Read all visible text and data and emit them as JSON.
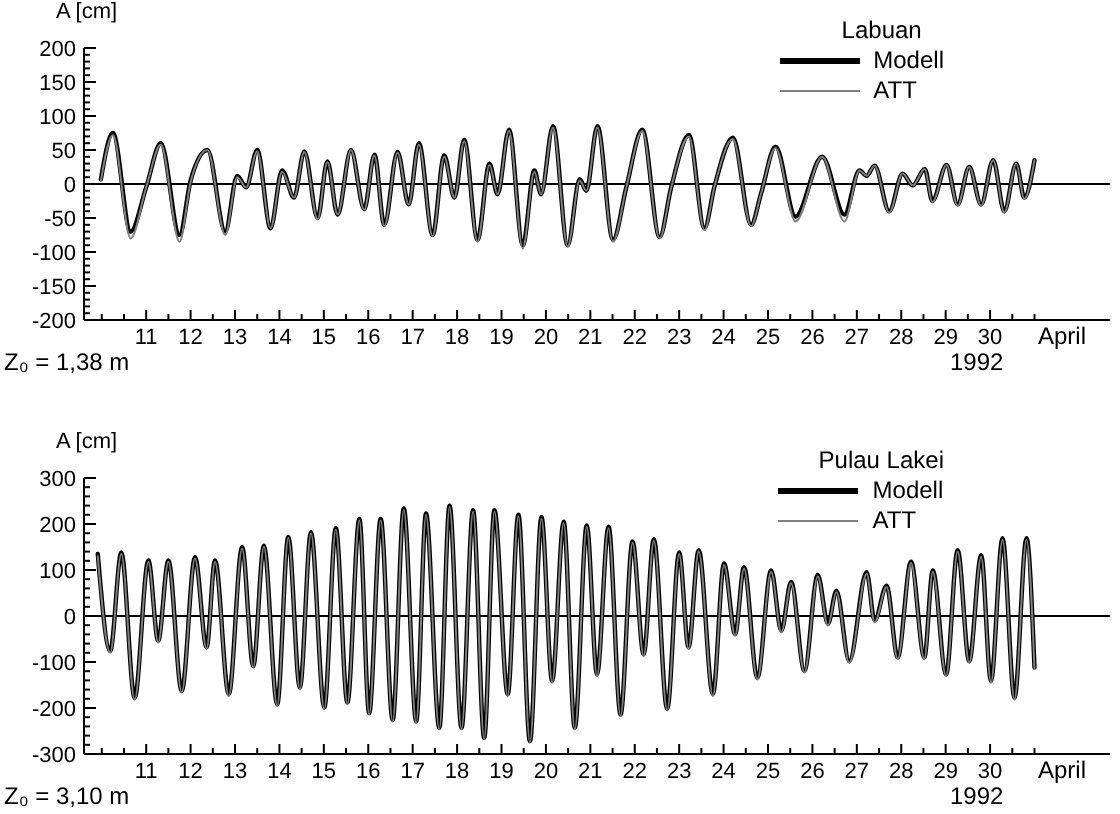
{
  "chart_data": [
    {
      "type": "line",
      "legend_title": "Labuan",
      "ylabel": "A [cm]",
      "xlabel": "April",
      "annotations": [
        "1992",
        "Z₀ = 1,38 m"
      ],
      "legend": "top right",
      "marker": "none",
      "line_style": "solid",
      "grid": false,
      "xlim": [
        9.6,
        32.7
      ],
      "xticks": [
        {
          "value": 10,
          "label": null
        },
        {
          "value": 10.5,
          "label": null
        },
        11,
        {
          "value": 11.5,
          "label": null
        },
        12,
        {
          "value": 12.5,
          "label": null
        },
        13,
        {
          "value": 13.5,
          "label": null
        },
        14,
        {
          "value": 14.5,
          "label": null
        },
        15,
        {
          "value": 15.5,
          "label": null
        },
        16,
        {
          "value": 16.5,
          "label": null
        },
        17,
        {
          "value": 17.5,
          "label": null
        },
        18,
        {
          "value": 18.5,
          "label": null
        },
        19,
        {
          "value": 19.5,
          "label": null
        },
        20,
        {
          "value": 20.5,
          "label": null
        },
        21,
        {
          "value": 21.5,
          "label": null
        },
        22,
        {
          "value": 22.5,
          "label": null
        },
        23,
        {
          "value": 23.5,
          "label": null
        },
        24,
        {
          "value": 24.5,
          "label": null
        },
        25,
        {
          "value": 25.5,
          "label": null
        },
        26,
        {
          "value": 26.5,
          "label": null
        },
        27,
        {
          "value": 27.5,
          "label": null
        },
        28,
        {
          "value": 28.5,
          "label": null
        },
        29,
        {
          "value": 29.5,
          "label": null
        },
        30,
        {
          "value": 30.5,
          "label": null
        },
        {
          "value": 31,
          "label": null
        }
      ],
      "ylim": [
        -200,
        200
      ],
      "yticks": [
        -200,
        {
          "value": -190,
          "label": null
        },
        {
          "value": -180,
          "label": null
        },
        {
          "value": -170,
          "label": null
        },
        {
          "value": -160,
          "label": null
        },
        -150,
        {
          "value": -140,
          "label": null
        },
        {
          "value": -130,
          "label": null
        },
        {
          "value": -120,
          "label": null
        },
        {
          "value": -110,
          "label": null
        },
        -100,
        {
          "value": -90,
          "label": null
        },
        {
          "value": -80,
          "label": null
        },
        {
          "value": -70,
          "label": null
        },
        {
          "value": -60,
          "label": null
        },
        -50,
        {
          "value": -40,
          "label": null
        },
        {
          "value": -30,
          "label": null
        },
        {
          "value": -20,
          "label": null
        },
        {
          "value": -10,
          "label": null
        },
        0,
        {
          "value": 10,
          "label": null
        },
        {
          "value": 20,
          "label": null
        },
        {
          "value": 30,
          "label": null
        },
        {
          "value": 40,
          "label": null
        },
        50,
        {
          "value": 60,
          "label": null
        },
        {
          "value": 70,
          "label": null
        },
        {
          "value": 80,
          "label": null
        },
        {
          "value": 90,
          "label": null
        },
        100,
        {
          "value": 110,
          "label": null
        },
        {
          "value": 120,
          "label": null
        },
        {
          "value": 130,
          "label": null
        },
        {
          "value": 140,
          "label": null
        },
        150,
        {
          "value": 160,
          "label": null
        },
        {
          "value": 170,
          "label": null
        },
        {
          "value": 180,
          "label": null
        },
        {
          "value": 190,
          "label": null
        },
        200
      ],
      "ref_lines": [
        {
          "axis": "y",
          "value": 0,
          "color": "#000000"
        }
      ],
      "series": [
        {
          "name": "Modell",
          "color": "#000000",
          "x": [
            9.98,
            10.25,
            10.65,
            11.0,
            11.33,
            11.75,
            12.0,
            12.38,
            12.78,
            13.05,
            13.25,
            13.5,
            13.8,
            14.06,
            14.33,
            14.56,
            14.86,
            15.08,
            15.31,
            15.61,
            15.91,
            16.14,
            16.36,
            16.66,
            16.91,
            17.14,
            17.45,
            17.71,
            17.94,
            18.16,
            18.46,
            18.73,
            18.91,
            19.17,
            19.48,
            19.74,
            19.89,
            20.16,
            20.49,
            20.76,
            20.91,
            21.16,
            21.51,
            21.81,
            22.17,
            22.56,
            22.82,
            23.22,
            23.57,
            23.79,
            24.21,
            24.62,
            24.84,
            25.17,
            25.62,
            26.22,
            26.72,
            27.06,
            27.22,
            27.4,
            27.73,
            28.03,
            28.26,
            28.53,
            28.7,
            29.02,
            29.27,
            29.53,
            29.8,
            30.07,
            30.32,
            30.59,
            30.77,
            31.0
          ],
          "values": [
            7,
            75,
            -70,
            -5,
            60,
            -75,
            5,
            50,
            -70,
            12,
            -5,
            50,
            -65,
            20,
            -20,
            48,
            -50,
            33,
            -45,
            50,
            -37,
            43,
            -60,
            47,
            -30,
            60,
            -75,
            42,
            -20,
            65,
            -82,
            30,
            -15,
            80,
            -90,
            20,
            -15,
            85,
            -90,
            7,
            -10,
            85,
            -82,
            -5,
            80,
            -78,
            -5,
            72,
            -65,
            -5,
            68,
            -60,
            -15,
            55,
            -48,
            40,
            -45,
            20,
            12,
            27,
            -40,
            15,
            -2,
            22,
            -25,
            28,
            -30,
            25,
            -30,
            35,
            -40,
            30,
            -20,
            35
          ]
        },
        {
          "name": "ATT",
          "color": "#7f7f7f",
          "x": [
            9.98,
            10.25,
            10.65,
            11.0,
            11.33,
            11.75,
            12.0,
            12.38,
            12.78,
            13.05,
            13.25,
            13.5,
            13.8,
            14.06,
            14.33,
            14.56,
            14.86,
            15.08,
            15.31,
            15.61,
            15.91,
            16.14,
            16.36,
            16.66,
            16.91,
            17.14,
            17.45,
            17.71,
            17.94,
            18.16,
            18.46,
            18.73,
            18.91,
            19.17,
            19.48,
            19.74,
            19.89,
            20.16,
            20.49,
            20.76,
            20.91,
            21.16,
            21.51,
            21.81,
            22.17,
            22.56,
            22.82,
            23.22,
            23.57,
            23.79,
            24.21,
            24.62,
            24.84,
            25.17,
            25.62,
            26.22,
            26.72,
            27.06,
            27.22,
            27.4,
            27.73,
            28.03,
            28.26,
            28.53,
            28.7,
            29.02,
            29.27,
            29.53,
            29.8,
            30.07,
            30.32,
            30.59,
            30.77,
            31.0
          ],
          "values": [
            5,
            72,
            -80,
            -5,
            58,
            -85,
            3,
            50,
            -75,
            10,
            -5,
            48,
            -65,
            18,
            -20,
            47,
            -52,
            32,
            -45,
            50,
            -38,
            42,
            -62,
            46,
            -30,
            58,
            -77,
            40,
            -20,
            63,
            -85,
            28,
            -15,
            78,
            -95,
            18,
            -15,
            83,
            -92,
            5,
            -10,
            83,
            -85,
            -5,
            78,
            -80,
            -5,
            70,
            -68,
            -5,
            66,
            -62,
            -15,
            53,
            -55,
            40,
            -55,
            20,
            12,
            27,
            -42,
            15,
            -2,
            22,
            -27,
            28,
            -32,
            25,
            -32,
            35,
            -42,
            30,
            -22,
            35
          ]
        }
      ]
    },
    {
      "type": "line",
      "legend_title": "Pulau Lakei",
      "ylabel": "A [cm]",
      "xlabel": "April",
      "annotations": [
        "1992",
        "Z₀ = 3,10 m"
      ],
      "legend": "top right",
      "marker": "none",
      "line_style": "solid",
      "grid": false,
      "xlim": [
        9.6,
        32.7
      ],
      "xticks": [
        {
          "value": 10,
          "label": null
        },
        {
          "value": 10.5,
          "label": null
        },
        11,
        {
          "value": 11.5,
          "label": null
        },
        12,
        {
          "value": 12.5,
          "label": null
        },
        13,
        {
          "value": 13.5,
          "label": null
        },
        14,
        {
          "value": 14.5,
          "label": null
        },
        15,
        {
          "value": 15.5,
          "label": null
        },
        16,
        {
          "value": 16.5,
          "label": null
        },
        17,
        {
          "value": 17.5,
          "label": null
        },
        18,
        {
          "value": 18.5,
          "label": null
        },
        19,
        {
          "value": 19.5,
          "label": null
        },
        20,
        {
          "value": 20.5,
          "label": null
        },
        21,
        {
          "value": 21.5,
          "label": null
        },
        22,
        {
          "value": 22.5,
          "label": null
        },
        23,
        {
          "value": 23.5,
          "label": null
        },
        24,
        {
          "value": 24.5,
          "label": null
        },
        25,
        {
          "value": 25.5,
          "label": null
        },
        26,
        {
          "value": 26.5,
          "label": null
        },
        27,
        {
          "value": 27.5,
          "label": null
        },
        28,
        {
          "value": 28.5,
          "label": null
        },
        29,
        {
          "value": 29.5,
          "label": null
        },
        30,
        {
          "value": 30.5,
          "label": null
        },
        {
          "value": 31,
          "label": null
        }
      ],
      "ylim": [
        -300,
        300
      ],
      "yticks": [
        -300,
        {
          "value": -280,
          "label": null
        },
        {
          "value": -260,
          "label": null
        },
        {
          "value": -240,
          "label": null
        },
        {
          "value": -220,
          "label": null
        },
        -200,
        {
          "value": -180,
          "label": null
        },
        {
          "value": -160,
          "label": null
        },
        {
          "value": -140,
          "label": null
        },
        {
          "value": -120,
          "label": null
        },
        -100,
        {
          "value": -80,
          "label": null
        },
        {
          "value": -60,
          "label": null
        },
        {
          "value": -40,
          "label": null
        },
        {
          "value": -20,
          "label": null
        },
        0,
        {
          "value": 20,
          "label": null
        },
        {
          "value": 40,
          "label": null
        },
        {
          "value": 60,
          "label": null
        },
        {
          "value": 80,
          "label": null
        },
        100,
        {
          "value": 120,
          "label": null
        },
        {
          "value": 140,
          "label": null
        },
        {
          "value": 160,
          "label": null
        },
        {
          "value": 180,
          "label": null
        },
        200,
        {
          "value": 220,
          "label": null
        },
        {
          "value": 240,
          "label": null
        },
        {
          "value": 260,
          "label": null
        },
        {
          "value": 280,
          "label": null
        },
        300
      ],
      "ref_lines": [
        {
          "axis": "y",
          "value": 0,
          "color": "#000000"
        }
      ],
      "series": [
        {
          "name": "Modell",
          "color": "#000000",
          "x": [
            9.91,
            10.19,
            10.44,
            10.74,
            11.05,
            11.27,
            11.5,
            11.8,
            12.1,
            12.36,
            12.55,
            12.86,
            13.16,
            13.41,
            13.65,
            13.95,
            14.2,
            14.46,
            14.71,
            15.01,
            15.27,
            15.53,
            15.8,
            16.02,
            16.28,
            16.55,
            16.8,
            17.08,
            17.3,
            17.6,
            17.83,
            18.1,
            18.36,
            18.61,
            18.84,
            19.14,
            19.38,
            19.64,
            19.9,
            20.14,
            20.4,
            20.65,
            20.92,
            21.15,
            21.41,
            21.68,
            21.95,
            22.2,
            22.43,
            22.73,
            23.0,
            23.21,
            23.44,
            23.76,
            24.01,
            24.26,
            24.46,
            24.76,
            25.07,
            25.3,
            25.52,
            25.82,
            26.12,
            26.35,
            26.54,
            26.83,
            27.22,
            27.4,
            27.67,
            27.92,
            28.22,
            28.52,
            28.71,
            29.01,
            29.27,
            29.53,
            29.8,
            30.02,
            30.28,
            30.55,
            30.82,
            31.0
          ],
          "values": [
            135,
            -76,
            138,
            -178,
            121,
            -54,
            121,
            -163,
            128,
            -68,
            121,
            -170,
            150,
            -109,
            153,
            -192,
            172,
            -156,
            182,
            -199,
            191,
            -188,
            211,
            -211,
            211,
            -226,
            234,
            -229,
            223,
            -243,
            240,
            -243,
            230,
            -265,
            230,
            -170,
            220,
            -272,
            215,
            -141,
            205,
            -243,
            197,
            -127,
            194,
            -214,
            162,
            -83,
            167,
            -202,
            138,
            -68,
            143,
            -170,
            114,
            -39,
            106,
            -134,
            99,
            -32,
            74,
            -119,
            89,
            -17,
            55,
            -98,
            95,
            -10,
            66,
            -90,
            118,
            -90,
            99,
            -127,
            143,
            -98,
            132,
            -141,
            169,
            -178,
            169,
            -112
          ]
        },
        {
          "name": "ATT",
          "color": "#7f7f7f",
          "x": [
            9.91,
            10.19,
            10.44,
            10.74,
            11.05,
            11.27,
            11.5,
            11.8,
            12.1,
            12.36,
            12.55,
            12.86,
            13.16,
            13.41,
            13.65,
            13.95,
            14.2,
            14.46,
            14.71,
            15.01,
            15.27,
            15.53,
            15.8,
            16.02,
            16.28,
            16.55,
            16.8,
            17.08,
            17.3,
            17.6,
            17.83,
            18.1,
            18.36,
            18.61,
            18.84,
            19.14,
            19.38,
            19.64,
            19.9,
            20.14,
            20.4,
            20.65,
            20.92,
            21.15,
            21.41,
            21.68,
            21.95,
            22.2,
            22.43,
            22.73,
            23.0,
            23.21,
            23.44,
            23.76,
            24.01,
            24.26,
            24.46,
            24.76,
            25.07,
            25.3,
            25.52,
            25.82,
            26.12,
            26.35,
            26.54,
            26.83,
            27.22,
            27.4,
            27.67,
            27.92,
            28.22,
            28.52,
            28.71,
            29.01,
            29.27,
            29.53,
            29.8,
            30.02,
            30.28,
            30.55,
            30.82,
            31.0
          ],
          "values": [
            130,
            -80,
            135,
            -182,
            118,
            -58,
            118,
            -166,
            125,
            -72,
            118,
            -174,
            147,
            -112,
            150,
            -196,
            170,
            -160,
            180,
            -203,
            188,
            -192,
            208,
            -215,
            208,
            -230,
            231,
            -233,
            220,
            -247,
            237,
            -247,
            227,
            -268,
            227,
            -174,
            217,
            -275,
            212,
            -145,
            202,
            -247,
            194,
            -131,
            191,
            -218,
            159,
            -87,
            164,
            -206,
            135,
            -72,
            140,
            -174,
            111,
            -43,
            103,
            -138,
            96,
            -36,
            71,
            -123,
            86,
            -21,
            52,
            -102,
            92,
            -14,
            63,
            -94,
            115,
            -94,
            96,
            -131,
            140,
            -102,
            129,
            -145,
            166,
            -182,
            166,
            -115
          ]
        }
      ]
    }
  ]
}
